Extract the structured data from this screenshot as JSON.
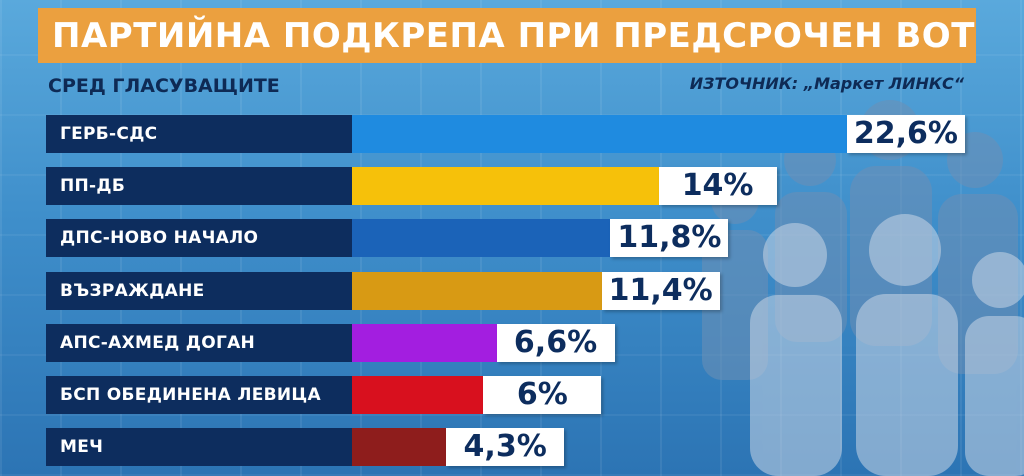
{
  "header": {
    "title": "ПАРТИЙНА ПОДКРЕПА ПРИ ПРЕДСРОЧЕН ВОТ",
    "subtitle": "СРЕД ГЛАСУВАЩИТЕ",
    "source": "ИЗТОЧНИК: „Маркет ЛИНКС“"
  },
  "colors": {
    "title_bg": "#eba03f",
    "label_bg": "#0d2d5e"
  },
  "chart_data": {
    "type": "bar",
    "orientation": "horizontal",
    "title": "ПАРТИЙНА ПОДКРЕПА ПРИ ПРЕДСРОЧЕН ВОТ",
    "subtitle": "СРЕД ГЛАСУВАЩИТЕ",
    "unit": "%",
    "categories": [
      "ГЕРБ-СДС",
      "ПП-ДБ",
      "ДПС-НОВО НАЧАЛО",
      "ВЪЗРАЖДАНЕ",
      "АПС-АХМЕД ДОГАН",
      "БСП ОБЕДИНЕНА ЛЕВИЦА",
      "МЕЧ"
    ],
    "values": [
      22.6,
      14,
      11.8,
      11.4,
      6.6,
      6,
      4.3
    ],
    "labels": [
      "22,6%",
      "14%",
      "11,8%",
      "11,4%",
      "6,6%",
      "6%",
      "4,3%"
    ],
    "bar_colors": [
      "#1f8be0",
      "#f6c10a",
      "#1b63b8",
      "#d89a14",
      "#a31ee0",
      "#d8101e",
      "#8e1d1c"
    ]
  }
}
